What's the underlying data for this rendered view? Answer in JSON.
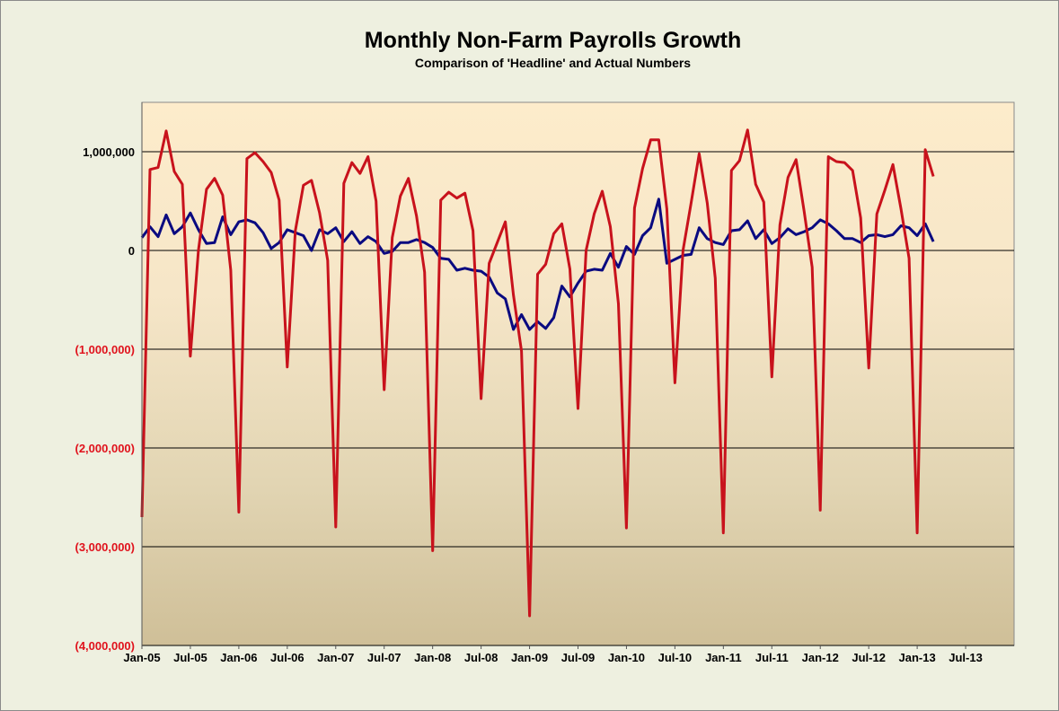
{
  "chart_data": {
    "type": "line",
    "title": "Monthly Non-Farm Payrolls Growth",
    "subtitle": "Comparison of 'Headline' and Actual Numbers",
    "xlabel": "",
    "ylabel": "",
    "ylim": [
      -4000000,
      1500000
    ],
    "yticks": [
      {
        "value": 1000000,
        "label": "1,000,000"
      },
      {
        "value": 0,
        "label": "0"
      },
      {
        "value": -1000000,
        "label": "(1,000,000)"
      },
      {
        "value": -2000000,
        "label": "(2,000,000)"
      },
      {
        "value": -3000000,
        "label": "(3,000,000)"
      },
      {
        "value": -4000000,
        "label": "(4,000,000)"
      }
    ],
    "xticks": [
      "Jan-05",
      "Jul-05",
      "Jan-06",
      "Jul-06",
      "Jan-07",
      "Jul-07",
      "Jan-08",
      "Jul-08",
      "Jan-09",
      "Jul-09",
      "Jan-10",
      "Jul-10",
      "Jan-11",
      "Jul-11",
      "Jan-12",
      "Jul-12",
      "Jan-13",
      "Jul-13"
    ],
    "x_start": "Jan-05",
    "months_total": 108,
    "grid": "horizontal",
    "colors": {
      "headline": "#0a0a80",
      "actual": "#c8121c",
      "negative_label": "#e0121c",
      "positive_label": "#000000",
      "grid": "#000000"
    },
    "series": [
      {
        "name": "",
        "color": "#0a0a80",
        "values": [
          130000,
          240000,
          140000,
          360000,
          170000,
          240000,
          380000,
          210000,
          70000,
          80000,
          340000,
          160000,
          290000,
          310000,
          280000,
          180000,
          20000,
          80000,
          210000,
          180000,
          150000,
          0,
          210000,
          170000,
          230000,
          90000,
          190000,
          70000,
          140000,
          90000,
          -30000,
          -10000,
          80000,
          80000,
          110000,
          80000,
          30000,
          -80000,
          -90000,
          -200000,
          -180000,
          -200000,
          -210000,
          -270000,
          -430000,
          -490000,
          -800000,
          -650000,
          -800000,
          -720000,
          -790000,
          -680000,
          -360000,
          -470000,
          -330000,
          -210000,
          -190000,
          -200000,
          -30000,
          -170000,
          40000,
          -40000,
          150000,
          230000,
          520000,
          -130000,
          -90000,
          -50000,
          -40000,
          230000,
          120000,
          80000,
          60000,
          200000,
          210000,
          300000,
          120000,
          210000,
          70000,
          130000,
          220000,
          160000,
          190000,
          230000,
          310000,
          270000,
          200000,
          120000,
          120000,
          80000,
          150000,
          160000,
          140000,
          160000,
          250000,
          230000,
          150000,
          270000,
          90000
        ]
      },
      {
        "name": "",
        "color": "#c8121c",
        "values": [
          -2700000,
          820000,
          840000,
          1210000,
          800000,
          670000,
          -1070000,
          0,
          620000,
          730000,
          560000,
          -200000,
          -2650000,
          930000,
          990000,
          900000,
          790000,
          510000,
          -1180000,
          200000,
          660000,
          710000,
          380000,
          -100000,
          -2800000,
          680000,
          890000,
          780000,
          950000,
          500000,
          -1410000,
          130000,
          550000,
          730000,
          350000,
          -220000,
          -3040000,
          510000,
          590000,
          530000,
          580000,
          200000,
          -1500000,
          -130000,
          80000,
          290000,
          -450000,
          -1020000,
          -3700000,
          -240000,
          -140000,
          170000,
          270000,
          -190000,
          -1600000,
          0,
          370000,
          600000,
          240000,
          -540000,
          -2810000,
          430000,
          830000,
          1120000,
          1120000,
          420000,
          -1340000,
          0,
          480000,
          980000,
          480000,
          -280000,
          -2860000,
          810000,
          910000,
          1220000,
          670000,
          490000,
          -1280000,
          260000,
          740000,
          920000,
          400000,
          -170000,
          -2630000,
          950000,
          900000,
          890000,
          810000,
          330000,
          -1190000,
          370000,
          610000,
          870000,
          420000,
          -80000,
          -2860000,
          1020000,
          750000
        ]
      }
    ]
  }
}
